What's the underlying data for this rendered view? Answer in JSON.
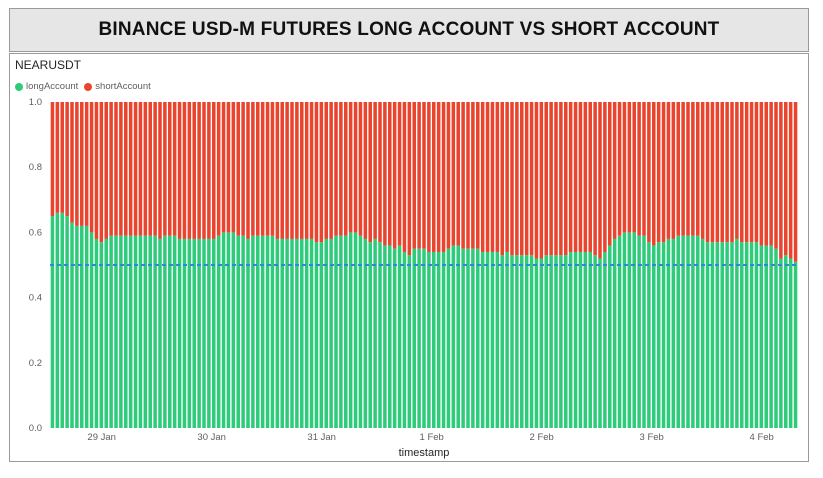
{
  "title": "BINANCE USD-M FUTURES LONG ACCOUNT VS SHORT ACCOUNT",
  "symbol": "NEARUSDT",
  "colors": {
    "long": "#2ecc7a",
    "short": "#e8442e",
    "reference": "#2e86de"
  },
  "chart_data": {
    "type": "bar",
    "stacked": true,
    "xlabel": "timestamp",
    "ylabel": "",
    "ylim": [
      0,
      1
    ],
    "yticks": [
      0.0,
      0.2,
      0.4,
      0.6,
      0.8,
      1.0
    ],
    "ytick_labels": [
      "0.0",
      "0.2",
      "0.4",
      "0.6",
      "0.8",
      "1.0"
    ],
    "xticks": [
      "29 Jan",
      "30 Jan",
      "31 Jan",
      "1 Feb",
      "2 Feb",
      "3 Feb",
      "4 Feb"
    ],
    "legend": {
      "position": "top-left",
      "entries": [
        "longAccount",
        "shortAccount"
      ]
    },
    "reference_line": {
      "y": 0.5,
      "style": "dashed"
    },
    "series": [
      {
        "name": "longAccount",
        "values": [
          0.65,
          0.66,
          0.66,
          0.65,
          0.63,
          0.62,
          0.62,
          0.62,
          0.6,
          0.58,
          0.57,
          0.58,
          0.59,
          0.59,
          0.59,
          0.59,
          0.59,
          0.59,
          0.59,
          0.59,
          0.59,
          0.59,
          0.58,
          0.59,
          0.59,
          0.59,
          0.58,
          0.58,
          0.58,
          0.58,
          0.58,
          0.58,
          0.58,
          0.58,
          0.59,
          0.6,
          0.6,
          0.6,
          0.59,
          0.59,
          0.58,
          0.59,
          0.59,
          0.59,
          0.59,
          0.59,
          0.58,
          0.58,
          0.58,
          0.58,
          0.58,
          0.58,
          0.58,
          0.58,
          0.57,
          0.57,
          0.58,
          0.58,
          0.59,
          0.59,
          0.59,
          0.6,
          0.6,
          0.59,
          0.58,
          0.57,
          0.58,
          0.57,
          0.56,
          0.56,
          0.55,
          0.56,
          0.54,
          0.53,
          0.55,
          0.55,
          0.55,
          0.54,
          0.54,
          0.54,
          0.54,
          0.55,
          0.56,
          0.56,
          0.55,
          0.55,
          0.55,
          0.55,
          0.54,
          0.54,
          0.54,
          0.54,
          0.53,
          0.54,
          0.53,
          0.53,
          0.53,
          0.53,
          0.53,
          0.52,
          0.52,
          0.53,
          0.53,
          0.53,
          0.53,
          0.53,
          0.54,
          0.54,
          0.54,
          0.54,
          0.54,
          0.53,
          0.52,
          0.54,
          0.56,
          0.58,
          0.59,
          0.6,
          0.6,
          0.6,
          0.59,
          0.59,
          0.57,
          0.56,
          0.57,
          0.57,
          0.58,
          0.58,
          0.59,
          0.59,
          0.59,
          0.59,
          0.59,
          0.58,
          0.57,
          0.57,
          0.57,
          0.57,
          0.57,
          0.57,
          0.58,
          0.57,
          0.57,
          0.57,
          0.57,
          0.56,
          0.56,
          0.56,
          0.55,
          0.52,
          0.53,
          0.52,
          0.51
        ]
      },
      {
        "name": "shortAccount",
        "values": [
          0.35,
          0.34,
          0.34,
          0.35,
          0.37,
          0.38,
          0.38,
          0.38,
          0.4,
          0.42,
          0.43,
          0.42,
          0.41,
          0.41,
          0.41,
          0.41,
          0.41,
          0.41,
          0.41,
          0.41,
          0.41,
          0.41,
          0.42,
          0.41,
          0.41,
          0.41,
          0.42,
          0.42,
          0.42,
          0.42,
          0.42,
          0.42,
          0.42,
          0.42,
          0.41,
          0.4,
          0.4,
          0.4,
          0.41,
          0.41,
          0.42,
          0.41,
          0.41,
          0.41,
          0.41,
          0.41,
          0.42,
          0.42,
          0.42,
          0.42,
          0.42,
          0.42,
          0.42,
          0.42,
          0.43,
          0.43,
          0.42,
          0.42,
          0.41,
          0.41,
          0.41,
          0.4,
          0.4,
          0.41,
          0.42,
          0.43,
          0.42,
          0.43,
          0.44,
          0.44,
          0.45,
          0.44,
          0.46,
          0.47,
          0.45,
          0.45,
          0.45,
          0.46,
          0.46,
          0.46,
          0.46,
          0.45,
          0.44,
          0.44,
          0.45,
          0.45,
          0.45,
          0.45,
          0.46,
          0.46,
          0.46,
          0.46,
          0.47,
          0.46,
          0.47,
          0.47,
          0.47,
          0.47,
          0.47,
          0.48,
          0.48,
          0.47,
          0.47,
          0.47,
          0.47,
          0.47,
          0.46,
          0.46,
          0.46,
          0.46,
          0.46,
          0.47,
          0.48,
          0.46,
          0.44,
          0.42,
          0.41,
          0.4,
          0.4,
          0.4,
          0.41,
          0.41,
          0.43,
          0.44,
          0.43,
          0.43,
          0.42,
          0.42,
          0.41,
          0.41,
          0.41,
          0.41,
          0.41,
          0.42,
          0.43,
          0.43,
          0.43,
          0.43,
          0.43,
          0.43,
          0.42,
          0.43,
          0.43,
          0.43,
          0.43,
          0.44,
          0.44,
          0.44,
          0.45,
          0.48,
          0.47,
          0.48,
          0.49
        ]
      }
    ]
  }
}
